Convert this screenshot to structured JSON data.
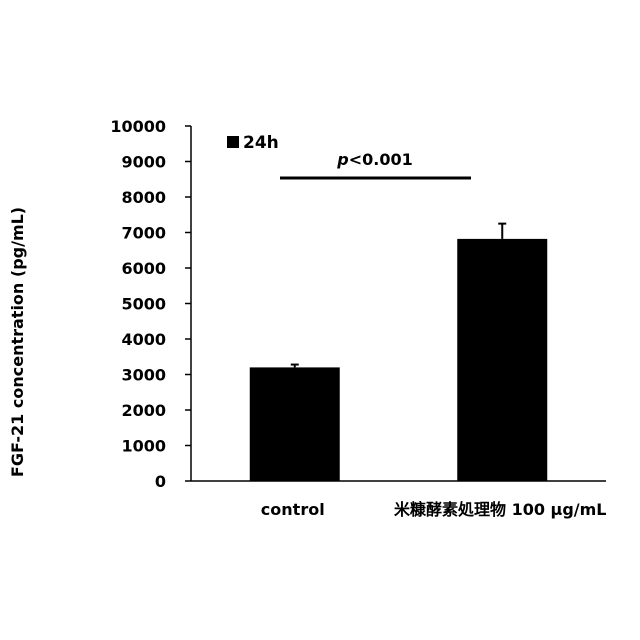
{
  "chart_data": {
    "type": "bar",
    "title": "",
    "xlabel": "",
    "ylabel": "FGF-21 concentration (pg/mL)",
    "ylim": [
      0,
      10000
    ],
    "yticks": [
      0,
      1000,
      2000,
      3000,
      4000,
      5000,
      6000,
      7000,
      8000,
      9000,
      10000
    ],
    "categories": [
      "control",
      "米糠酵素処理物 100 μg/mL"
    ],
    "series": [
      {
        "name": "24h",
        "values": [
          3200,
          6820
        ],
        "errors": [
          80,
          430
        ],
        "color": "#000000"
      }
    ],
    "legend": {
      "position": "top-left"
    },
    "grid": false,
    "annotation": {
      "italic_part": "p",
      "rest": "<0.001",
      "between": [
        0,
        1
      ]
    }
  }
}
